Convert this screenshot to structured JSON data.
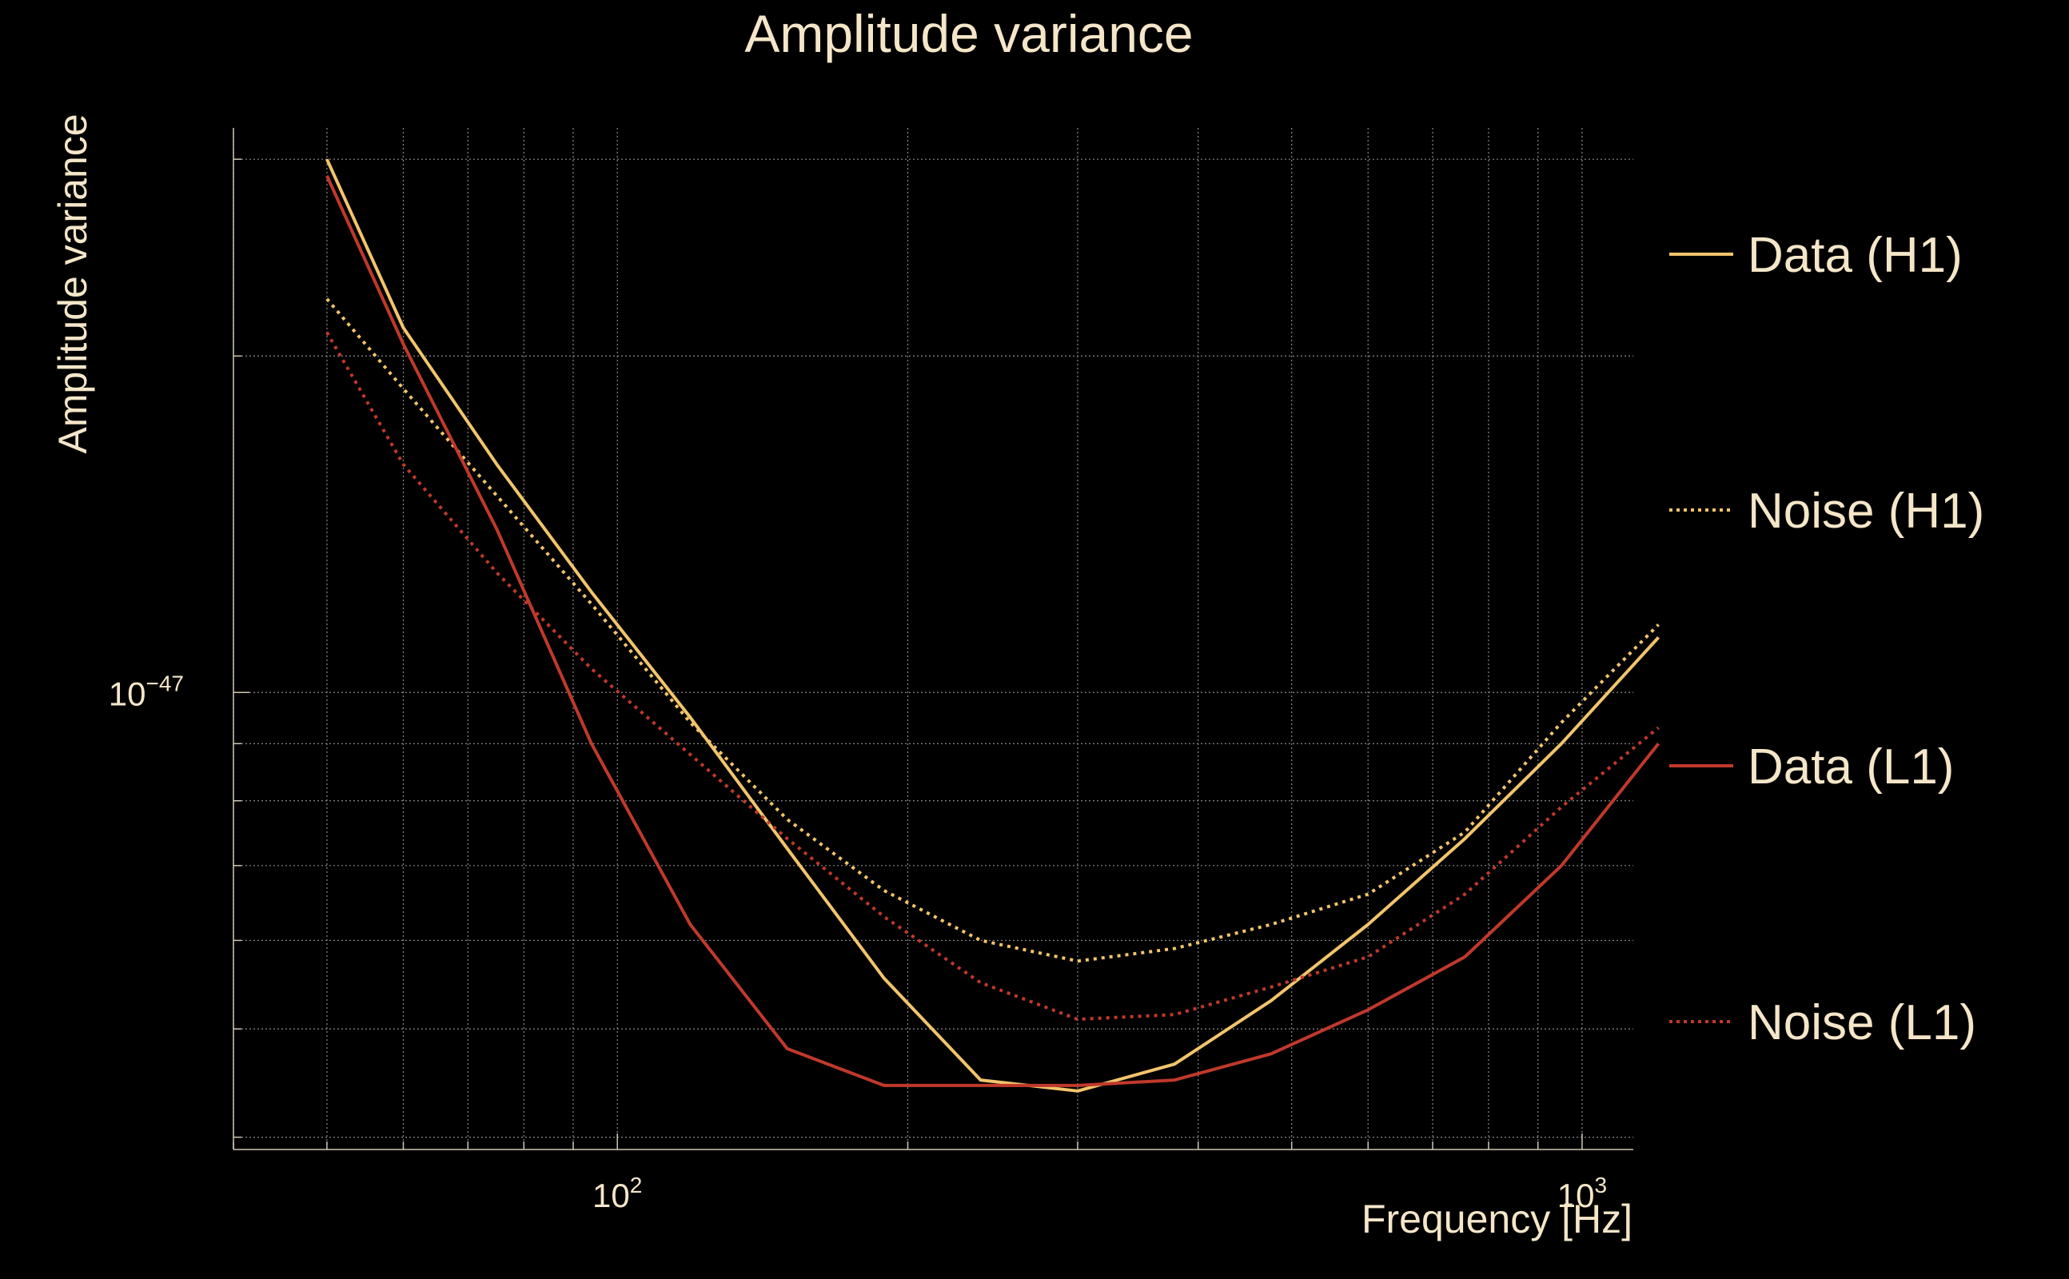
{
  "chart_data": {
    "type": "line",
    "title": "Amplitude variance",
    "xlabel": "Frequency [Hz]",
    "ylabel": "Amplitude variance",
    "x_scale": "log",
    "y_scale": "log",
    "xlim": [
      40,
      1130
    ],
    "ylim": [
      3.9e-48,
      3.2e-47
    ],
    "x_tick_labels": [
      {
        "value": 100,
        "base": "10",
        "exp": "2"
      },
      {
        "value": 1000,
        "base": "10",
        "exp": "3"
      }
    ],
    "y_tick_labels": [
      {
        "value": 1e-47,
        "base": "10",
        "exp": "−47"
      }
    ],
    "grid": true,
    "legend_position": "right",
    "x": [
      50,
      60,
      75,
      94,
      119,
      150,
      189,
      238,
      300,
      378,
      476,
      600,
      756,
      952,
      1200
    ],
    "series": [
      {
        "name": "Data (H1)",
        "color": "#f2c46b",
        "style": "solid",
        "values": [
          3e-47,
          2.12e-47,
          1.6e-47,
          1.23e-47,
          9.5e-48,
          7.25e-48,
          5.55e-48,
          4.5e-48,
          4.4e-48,
          4.65e-48,
          5.3e-48,
          6.2e-48,
          7.4e-48,
          9e-48,
          1.12e-47
        ]
      },
      {
        "name": "Noise (H1)",
        "color": "#f2c46b",
        "style": "dotted",
        "values": [
          2.25e-47,
          1.87e-47,
          1.5e-47,
          1.2e-47,
          9.4e-48,
          7.7e-48,
          6.65e-48,
          6e-48,
          5.75e-48,
          5.9e-48,
          6.2e-48,
          6.6e-48,
          7.5e-48,
          9.4e-48,
          1.15e-47
        ]
      },
      {
        "name": "Data (L1)",
        "color": "#c0392b",
        "style": "solid",
        "values": [
          2.9e-47,
          2.05e-47,
          1.4e-47,
          9e-48,
          6.2e-48,
          4.8e-48,
          4.45e-48,
          4.45e-48,
          4.45e-48,
          4.5e-48,
          4.75e-48,
          5.2e-48,
          5.8e-48,
          7e-48,
          9e-48
        ]
      },
      {
        "name": "Noise (L1)",
        "color": "#c0392b",
        "style": "dotted",
        "values": [
          2.1e-47,
          1.6e-47,
          1.28e-47,
          1.05e-47,
          8.8e-48,
          7.4e-48,
          6.3e-48,
          5.5e-48,
          5.1e-48,
          5.15e-48,
          5.45e-48,
          5.8e-48,
          6.6e-48,
          7.9e-48,
          9.3e-48
        ]
      }
    ]
  }
}
